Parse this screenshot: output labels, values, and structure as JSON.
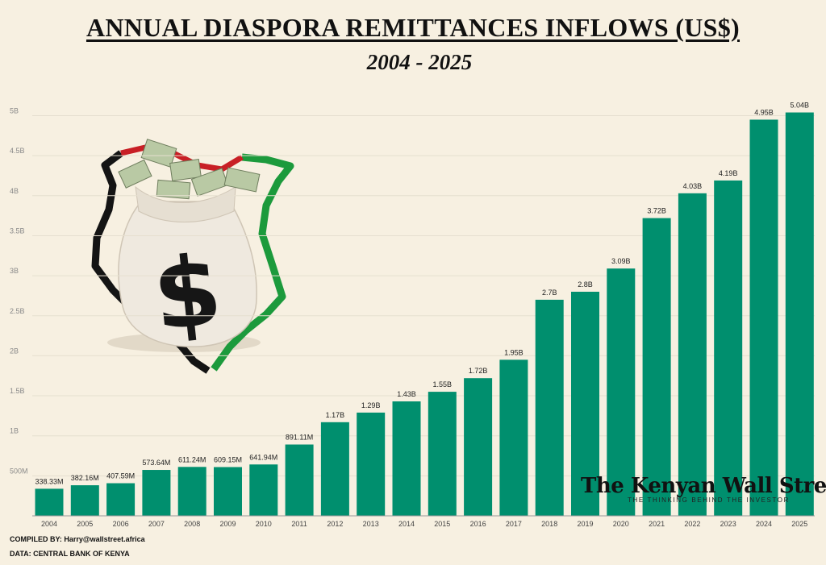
{
  "header": {
    "title": "ANNUAL DIASPORA REMITTANCES INFLOWS (US$)",
    "subtitle": "2004 - 2025"
  },
  "footer": {
    "compiled_by": "COMPILED BY: Harry@wallstreet.africa",
    "data_source": "DATA: CENTRAL BANK OF KENYA"
  },
  "watermark": {
    "name": "The Kenyan Wall Street",
    "tagline": "THE THINKING BEHIND THE INVESTOR"
  },
  "colors": {
    "bar": "#008f6e",
    "background": "#f7f0e1",
    "grid": "#e6dfcf",
    "tick_text": "#8a8a8a",
    "label_text": "#222222"
  },
  "chart_data": {
    "type": "bar",
    "categories": [
      "2004",
      "2005",
      "2006",
      "2007",
      "2008",
      "2009",
      "2010",
      "2011",
      "2012",
      "2013",
      "2014",
      "2015",
      "2016",
      "2017",
      "2018",
      "2019",
      "2020",
      "2021",
      "2022",
      "2023",
      "2024",
      "2025"
    ],
    "values": [
      338.33,
      382.16,
      407.59,
      573.64,
      611.24,
      609.15,
      641.94,
      891.11,
      1170,
      1290,
      1430,
      1550,
      1720,
      1950,
      2700,
      2800,
      3090,
      3720,
      4030,
      4190,
      4950,
      5040
    ],
    "data_labels": [
      "338.33M",
      "382.16M",
      "407.59M",
      "573.64M",
      "611.24M",
      "609.15M",
      "641.94M",
      "891.11M",
      "1.17B",
      "1.29B",
      "1.43B",
      "1.55B",
      "1.72B",
      "1.95B",
      "2.7B",
      "2.8B",
      "3.09B",
      "3.72B",
      "4.03B",
      "4.19B",
      "4.95B",
      "5.04B"
    ],
    "unit": "US$ millions",
    "ylim": [
      0,
      5000
    ],
    "yticks": [
      500,
      1000,
      1500,
      2000,
      2500,
      3000,
      3500,
      4000,
      4500,
      5000
    ],
    "ytick_labels": [
      "500M",
      "1B",
      "1.5B",
      "2B",
      "2.5B",
      "3B",
      "3.5B",
      "4B",
      "4.5B",
      "5B"
    ],
    "grid": true,
    "legend": "none"
  }
}
